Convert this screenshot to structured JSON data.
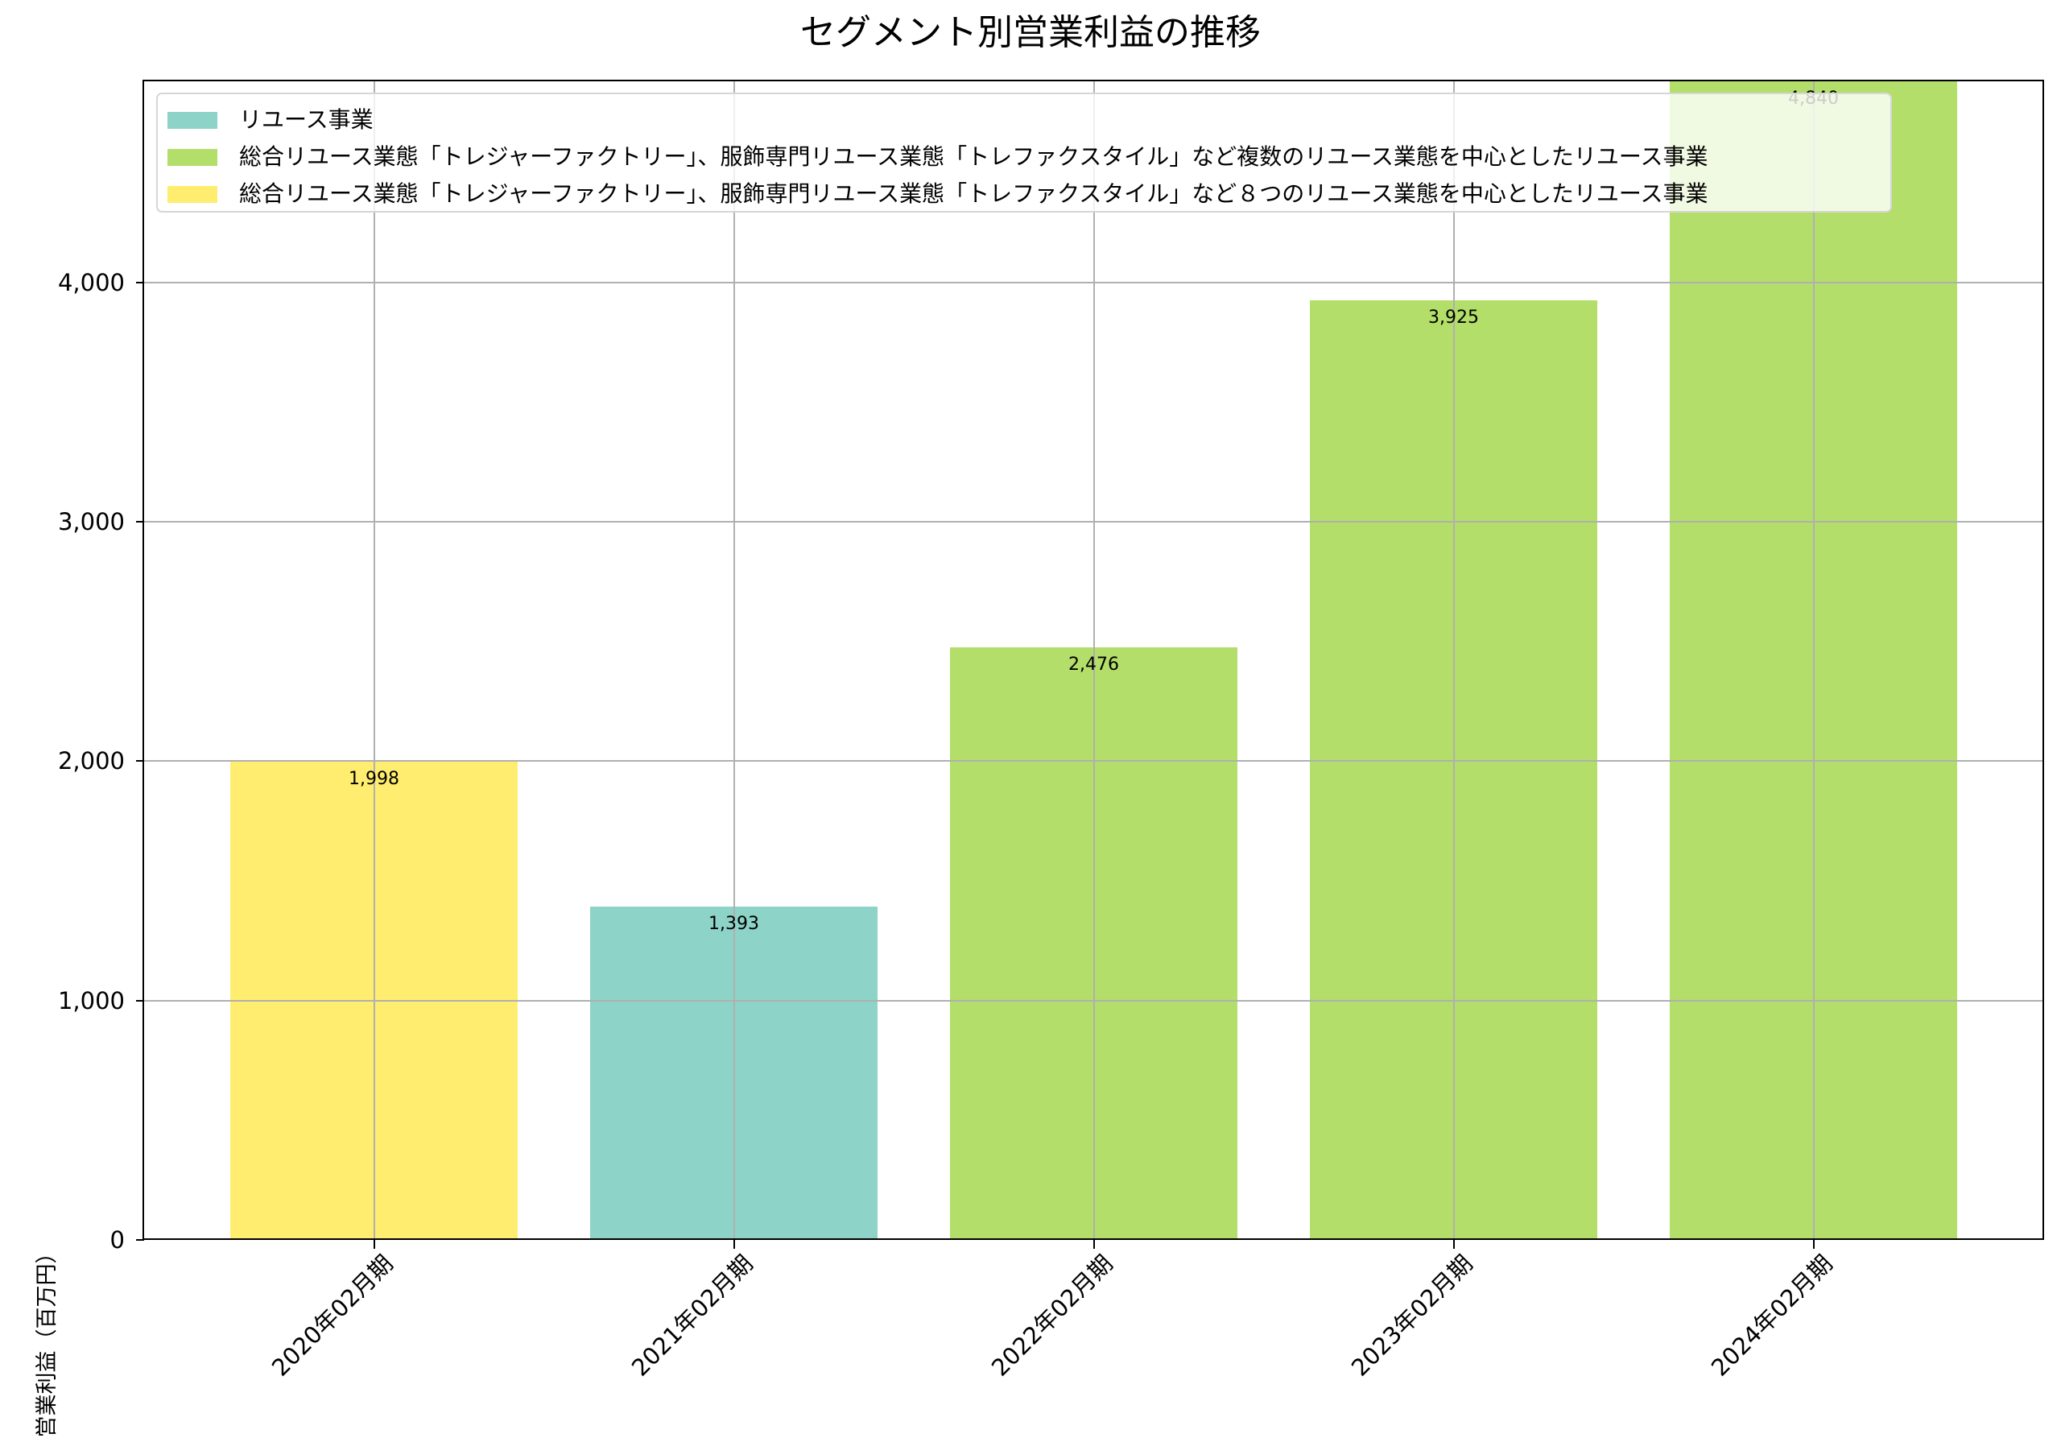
{
  "title": "セグメント別営業利益の推移",
  "legend": {
    "items": [
      {
        "label": "リユース事業",
        "color": "#8dd3c7"
      },
      {
        "label": "総合リユース業態「トレジャーファクトリー」、服飾専門リユース業態「トレファクスタイル」など複数のリユース業態を中心としたリユース事業",
        "color": "#b3de69"
      },
      {
        "label": "総合リユース業態「トレジャーファクトリー」、服飾専門リユース業態「トレファクスタイル」など８つのリユース業態を中心としたリユース事業",
        "color": "#ffed6f"
      }
    ]
  },
  "chart_data": {
    "type": "bar",
    "title": "セグメント別営業利益の推移",
    "xlabel": "",
    "ylabel": "営業利益（百万円）",
    "categories": [
      "2020年02月期",
      "2021年02月期",
      "2022年02月期",
      "2023年02月期",
      "2024年02月期"
    ],
    "values": [
      1998,
      1393,
      2476,
      3925,
      4840
    ],
    "value_labels": [
      "1,998",
      "1,393",
      "2,476",
      "3,925",
      "4,840"
    ],
    "bar_series": [
      "総合リユース業態「トレジャーファクトリー」、服飾専門リユース業態「トレファクスタイル」など８つのリユース業態を中心としたリユース事業",
      "リユース事業",
      "総合リユース業態「トレジャーファクトリー」、服飾専門リユース業態「トレファクスタイル」など複数のリユース業態を中心としたリユース事業",
      "総合リユース業態「トレジャーファクトリー」、服飾専門リユース業態「トレファクスタイル」など複数のリユース業態を中心としたリユース事業",
      "総合リユース業態「トレジャーファクトリー」、服飾専門リユース業態「トレファクスタイル」など複数のリユース業態を中心としたリユース事業"
    ],
    "bar_colors": [
      "#ffed6f",
      "#8dd3c7",
      "#b3de69",
      "#b3de69",
      "#b3de69"
    ],
    "ylim": [
      0,
      4840
    ],
    "yticks": [
      0,
      1000,
      2000,
      3000,
      4000
    ],
    "ytick_labels": [
      "0",
      "1,000",
      "2,000",
      "3,000",
      "4,000"
    ],
    "grid": true,
    "legend_position": "upper left",
    "xtick_rotation": 45
  }
}
